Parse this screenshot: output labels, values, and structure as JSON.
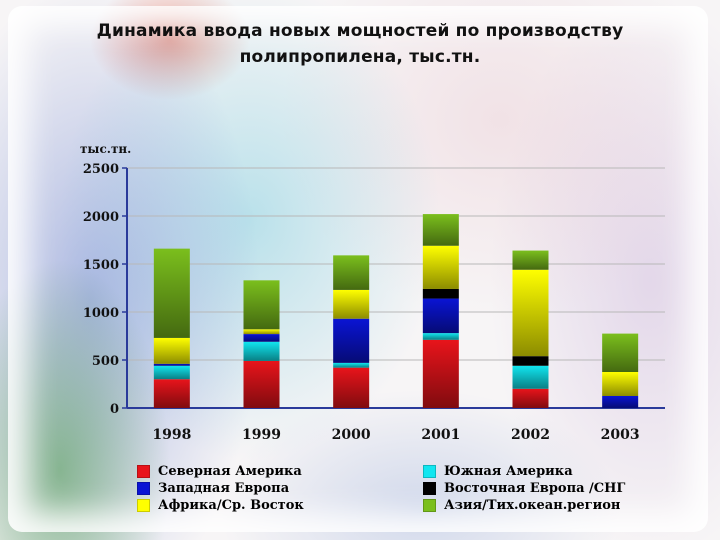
{
  "title": {
    "line1": "Динамика ввода новых мощностей по производству",
    "line2": "полипропилена, тыс.тн."
  },
  "chart_data": {
    "type": "bar",
    "stacked": true,
    "ylabel": "тыс.тн.",
    "ylim": [
      0,
      2500
    ],
    "yticks": [
      "0",
      "500",
      "1000",
      "1500",
      "2000",
      "2500"
    ],
    "ytick_values": [
      0,
      500,
      1000,
      1500,
      2000,
      2500
    ],
    "grid": true,
    "legend_position": "bottom",
    "categories": [
      "1998",
      "1999",
      "2000",
      "2001",
      "2002",
      "2003"
    ],
    "series": [
      {
        "name": "Северная Америка",
        "color": "#e8141b",
        "values": [
          300,
          490,
          420,
          710,
          200,
          0
        ]
      },
      {
        "name": "Южная Америка",
        "color": "#11e6f0",
        "values": [
          140,
          200,
          50,
          70,
          240,
          0
        ]
      },
      {
        "name": "Западная Европа",
        "color": "#0a14d4",
        "values": [
          20,
          80,
          460,
          360,
          0,
          125
        ]
      },
      {
        "name": "Восточная Европа /СНГ",
        "color": "#000000",
        "values": [
          0,
          0,
          0,
          100,
          100,
          0
        ]
      },
      {
        "name": "Африка/Ср. Восток",
        "color": "#ffff00",
        "values": [
          270,
          50,
          300,
          450,
          900,
          250
        ]
      },
      {
        "name": "Азия/Тих.океан.регион",
        "color": "#7bbf1d",
        "values": [
          930,
          510,
          360,
          330,
          200,
          400
        ]
      }
    ]
  },
  "legend": {
    "left": [
      0,
      2,
      4
    ],
    "right": [
      1,
      3,
      5
    ]
  }
}
